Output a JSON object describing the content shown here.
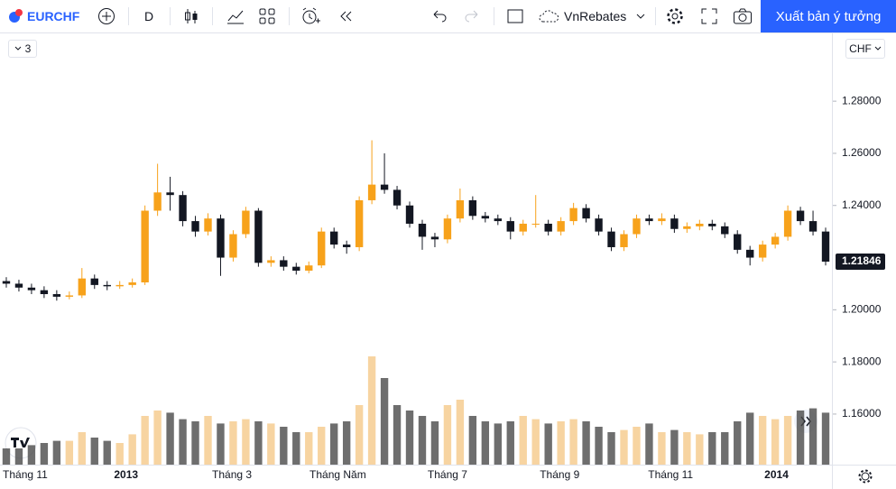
{
  "toolbar": {
    "symbol": "EURCHF",
    "interval": "D",
    "layout_name": "VnRebates",
    "publish_button": "Xuất bản ý tưởng"
  },
  "indicator_count": "3",
  "currency": "CHF",
  "chart_data": {
    "type": "candlestick",
    "up_color": "#f7a21b",
    "down_color": "#131722",
    "volume_up_color": "#f5c98a",
    "volume_down_color": "#4a4a4a",
    "open": [
      1.211,
      1.21,
      1.2085,
      1.2075,
      1.206,
      1.205,
      1.2055,
      1.212,
      1.2095,
      1.209,
      1.2095,
      1.2105,
      1.238,
      1.245,
      1.244,
      1.234,
      1.23,
      1.235,
      1.22,
      1.229,
      1.238,
      1.218,
      1.219,
      1.2165,
      1.215,
      1.217,
      1.23,
      1.225,
      1.224,
      1.242,
      1.248,
      1.246,
      1.24,
      1.233,
      1.228,
      1.227,
      1.235,
      1.242,
      1.236,
      1.235,
      1.234,
      1.23,
      1.233,
      1.233,
      1.23,
      1.234,
      1.239,
      1.235,
      1.23,
      1.224,
      1.229,
      1.235,
      1.234,
      1.235,
      1.231,
      1.232,
      1.233,
      1.232,
      1.229,
      1.223,
      1.22,
      1.225,
      1.228,
      1.238,
      1.234,
      1.23
    ],
    "high": [
      1.2125,
      1.2115,
      1.21,
      1.209,
      1.2075,
      1.207,
      1.216,
      1.2135,
      1.211,
      1.211,
      1.212,
      1.24,
      1.256,
      1.251,
      1.2455,
      1.236,
      1.237,
      1.2365,
      1.2305,
      1.2395,
      1.239,
      1.2205,
      1.2205,
      1.218,
      1.2185,
      1.2315,
      1.2315,
      1.2265,
      1.2435,
      1.265,
      1.26,
      1.2475,
      1.2415,
      1.2345,
      1.2295,
      1.2365,
      1.2465,
      1.2435,
      1.2375,
      1.2365,
      1.2355,
      1.2345,
      1.244,
      1.2345,
      1.2355,
      1.241,
      1.2405,
      1.2365,
      1.2315,
      1.2305,
      1.2365,
      1.2365,
      1.237,
      1.2365,
      1.2335,
      1.2345,
      1.2345,
      1.2335,
      1.2305,
      1.2245,
      1.2265,
      1.2295,
      1.24,
      1.2395,
      1.238,
      1.2315
    ],
    "low": [
      1.2085,
      1.207,
      1.206,
      1.2045,
      1.2035,
      1.204,
      1.2045,
      1.208,
      1.2075,
      1.208,
      1.2085,
      1.2095,
      1.236,
      1.238,
      1.232,
      1.228,
      1.2285,
      1.213,
      1.2185,
      1.2275,
      1.2165,
      1.2165,
      1.215,
      1.2135,
      1.214,
      1.216,
      1.2235,
      1.2215,
      1.2225,
      1.2405,
      1.2445,
      1.2385,
      1.2315,
      1.223,
      1.224,
      1.2255,
      1.2335,
      1.2345,
      1.2335,
      1.2325,
      1.227,
      1.2285,
      1.2315,
      1.2285,
      1.2285,
      1.2325,
      1.2335,
      1.2285,
      1.2225,
      1.2225,
      1.2275,
      1.2325,
      1.2325,
      1.2295,
      1.2295,
      1.2305,
      1.2305,
      1.2275,
      1.2215,
      1.217,
      1.2185,
      1.2235,
      1.2265,
      1.2325,
      1.2285,
      1.217
    ],
    "close": [
      1.21,
      1.2085,
      1.2075,
      1.206,
      1.205,
      1.2055,
      1.212,
      1.2095,
      1.209,
      1.2095,
      1.2105,
      1.238,
      1.245,
      1.244,
      1.234,
      1.23,
      1.235,
      1.22,
      1.229,
      1.238,
      1.218,
      1.219,
      1.2165,
      1.215,
      1.217,
      1.23,
      1.225,
      1.224,
      1.242,
      1.248,
      1.246,
      1.24,
      1.233,
      1.228,
      1.227,
      1.235,
      1.242,
      1.236,
      1.235,
      1.234,
      1.23,
      1.233,
      1.233,
      1.23,
      1.234,
      1.239,
      1.235,
      1.23,
      1.224,
      1.229,
      1.235,
      1.234,
      1.235,
      1.231,
      1.232,
      1.233,
      1.232,
      1.229,
      1.223,
      1.22,
      1.225,
      1.228,
      1.238,
      1.234,
      1.23,
      1.21846
    ],
    "volume": [
      15,
      15,
      18,
      20,
      22,
      22,
      30,
      25,
      22,
      20,
      28,
      45,
      50,
      48,
      42,
      40,
      45,
      38,
      40,
      42,
      40,
      38,
      35,
      30,
      30,
      35,
      38,
      40,
      55,
      100,
      80,
      55,
      50,
      45,
      40,
      55,
      60,
      45,
      40,
      38,
      40,
      45,
      42,
      38,
      40,
      42,
      40,
      35,
      30,
      32,
      35,
      38,
      30,
      32,
      30,
      28,
      30,
      30,
      40,
      48,
      45,
      42,
      45,
      50,
      52,
      48
    ],
    "vlim": [
      0,
      100
    ],
    "ylim": [
      1.1406,
      1.306
    ],
    "yticks": [
      {
        "value": 1.16,
        "label": "1.16000"
      },
      {
        "value": 1.18,
        "label": "1.18000"
      },
      {
        "value": 1.2,
        "label": "1.20000"
      },
      {
        "value": 1.24,
        "label": "1.24000"
      },
      {
        "value": 1.26,
        "label": "1.26000"
      },
      {
        "value": 1.28,
        "label": "1.28000"
      }
    ],
    "xlim": [
      -0.5,
      65.5
    ],
    "xticks": [
      {
        "value": 1.5,
        "label": "Tháng 11"
      },
      {
        "value": 9.5,
        "label": "2013"
      },
      {
        "value": 17.9,
        "label": "Tháng 3"
      },
      {
        "value": 26.3,
        "label": "Tháng Năm"
      },
      {
        "value": 35,
        "label": "Tháng 7"
      },
      {
        "value": 43.9,
        "label": "Tháng 9"
      },
      {
        "value": 52.7,
        "label": "Tháng 11"
      },
      {
        "value": 61.1,
        "label": "2014"
      }
    ],
    "last_price": 1.21846
  }
}
